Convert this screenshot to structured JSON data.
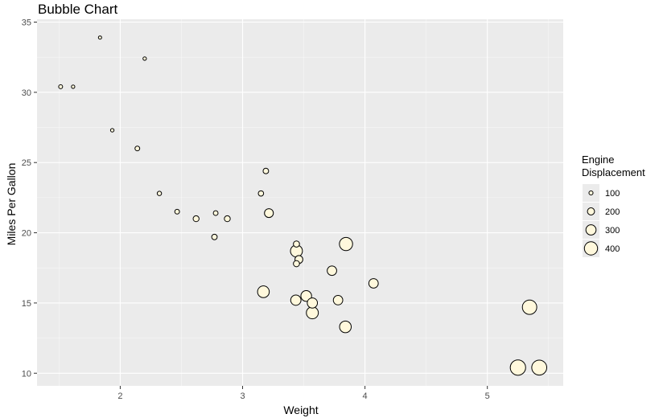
{
  "chart_data": {
    "type": "scatter",
    "title": "Bubble Chart",
    "xlabel": "Weight",
    "ylabel": "Miles Per Gallon",
    "xlim": [
      1.32,
      5.62
    ],
    "ylim": [
      9.1,
      35.2
    ],
    "x_ticks": [
      2,
      3,
      4,
      5
    ],
    "y_ticks": [
      10,
      15,
      20,
      25,
      30,
      35
    ],
    "grid": true,
    "legend_position": "right",
    "legend": {
      "title_line1": "Engine",
      "title_line2": "Displacement",
      "entries": [
        {
          "label": "100",
          "value": 100
        },
        {
          "label": "200",
          "value": 200
        },
        {
          "label": "300",
          "value": 300
        },
        {
          "label": "400",
          "value": 400
        }
      ]
    },
    "size_variable": "Engine Displacement",
    "colors": {
      "panel": "#ebebeb",
      "grid_major": "#ffffff",
      "point_fill": "#fff8dc",
      "point_stroke": "#000000"
    },
    "points": [
      {
        "x": 2.62,
        "y": 21.0,
        "size": 160
      },
      {
        "x": 2.875,
        "y": 21.0,
        "size": 160
      },
      {
        "x": 2.32,
        "y": 22.8,
        "size": 108
      },
      {
        "x": 3.215,
        "y": 21.4,
        "size": 258
      },
      {
        "x": 3.44,
        "y": 18.7,
        "size": 360
      },
      {
        "x": 3.46,
        "y": 18.1,
        "size": 225
      },
      {
        "x": 3.57,
        "y": 14.3,
        "size": 360
      },
      {
        "x": 3.19,
        "y": 24.4,
        "size": 146.7
      },
      {
        "x": 3.15,
        "y": 22.8,
        "size": 140.8
      },
      {
        "x": 3.44,
        "y": 19.2,
        "size": 167.6
      },
      {
        "x": 3.44,
        "y": 17.8,
        "size": 167.6
      },
      {
        "x": 4.07,
        "y": 16.4,
        "size": 275.8
      },
      {
        "x": 3.73,
        "y": 17.3,
        "size": 275.8
      },
      {
        "x": 3.78,
        "y": 15.2,
        "size": 275.8
      },
      {
        "x": 5.25,
        "y": 10.4,
        "size": 472
      },
      {
        "x": 5.424,
        "y": 10.4,
        "size": 460
      },
      {
        "x": 5.345,
        "y": 14.7,
        "size": 440
      },
      {
        "x": 2.2,
        "y": 32.4,
        "size": 78.7
      },
      {
        "x": 1.615,
        "y": 30.4,
        "size": 75.7
      },
      {
        "x": 1.835,
        "y": 33.9,
        "size": 71.1
      },
      {
        "x": 2.465,
        "y": 21.5,
        "size": 120.1
      },
      {
        "x": 3.52,
        "y": 15.5,
        "size": 318
      },
      {
        "x": 3.435,
        "y": 15.2,
        "size": 304
      },
      {
        "x": 3.84,
        "y": 13.3,
        "size": 350
      },
      {
        "x": 3.845,
        "y": 19.2,
        "size": 400
      },
      {
        "x": 1.935,
        "y": 27.3,
        "size": 79
      },
      {
        "x": 2.14,
        "y": 26.0,
        "size": 120.3
      },
      {
        "x": 1.513,
        "y": 30.4,
        "size": 95.1
      },
      {
        "x": 3.17,
        "y": 15.8,
        "size": 351
      },
      {
        "x": 2.77,
        "y": 19.7,
        "size": 145
      },
      {
        "x": 3.57,
        "y": 15.0,
        "size": 301
      },
      {
        "x": 2.78,
        "y": 21.4,
        "size": 121
      }
    ]
  }
}
